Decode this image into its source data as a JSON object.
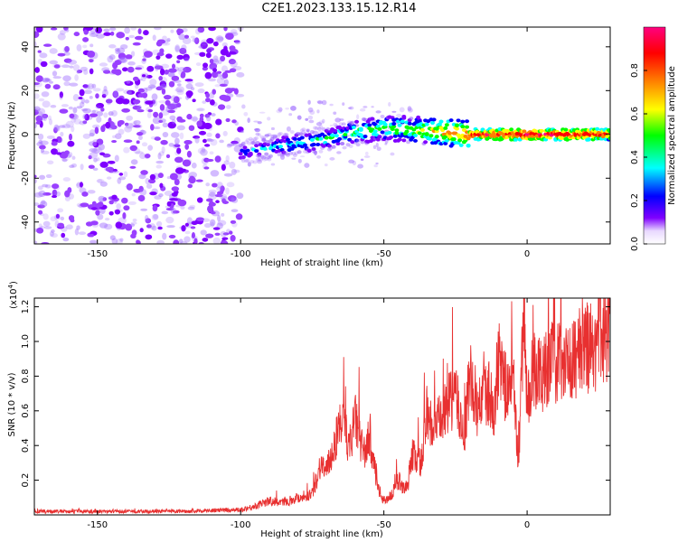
{
  "title": "C2E1.2023.133.15.12.R14",
  "chart_data": [
    {
      "type": "heatmap",
      "xlabel": "Height of straight line (km)",
      "ylabel": "Frequency (Hz)",
      "xlim": [
        -172,
        29
      ],
      "ylim": [
        -50,
        49
      ],
      "x_ticks": [
        -150,
        -100,
        -50,
        0
      ],
      "y_ticks": [
        -40,
        -20,
        0,
        20,
        40
      ],
      "colorbar": {
        "label": "Normalized spectral amplitude",
        "range": [
          0,
          1
        ],
        "ticks": [
          "0.0",
          "0.2",
          "0.4",
          "0.6",
          "0.8"
        ],
        "colormap": [
          "#ffffff",
          "#7f00ff",
          "#0000ff",
          "#00ffff",
          "#00ff00",
          "#ffff00",
          "#ff8000",
          "#ff0000",
          "#ff0080"
        ]
      },
      "ridge": {
        "x": [
          -100,
          -90,
          -80,
          -70,
          -60,
          -50,
          -40,
          -30,
          -20,
          -10,
          0,
          10,
          20,
          29
        ],
        "frequency": [
          -8,
          -6,
          -4,
          -2,
          1,
          3,
          2,
          1,
          0,
          0,
          0,
          0,
          0,
          0
        ],
        "amplitude": [
          0.3,
          0.35,
          0.4,
          0.45,
          0.5,
          0.55,
          0.6,
          0.7,
          0.85,
          0.9,
          0.95,
          0.9,
          0.9,
          0.85
        ]
      },
      "noise_region_x": [
        -172,
        -100
      ]
    },
    {
      "type": "line",
      "xlabel": "Height of straight line (km)",
      "ylabel": "SNR (10 * v/v)",
      "y_scale_label": "(x10",
      "y_scale_exp": "4",
      "xlim": [
        -172,
        29
      ],
      "ylim": [
        0,
        1.25
      ],
      "x_ticks": [
        -150,
        -100,
        -50,
        0
      ],
      "y_ticks": [
        "0.2",
        "0.4",
        "0.6",
        "0.8",
        "1.0",
        "1.2"
      ],
      "series": [
        {
          "color": "#e83030",
          "x": [
            -172,
            -150,
            -120,
            -100,
            -95,
            -90,
            -85,
            -80,
            -75,
            -72,
            -70,
            -67,
            -65,
            -62,
            -60,
            -57,
            -55,
            -52,
            -50,
            -47,
            -45,
            -42,
            -40,
            -37,
            -35,
            -33,
            -30,
            -27,
            -25,
            -22,
            -20,
            -17,
            -15,
            -12,
            -10,
            -7,
            -5,
            -3,
            -1,
            0,
            2,
            5,
            8,
            10,
            13,
            15,
            18,
            20,
            23,
            25,
            29
          ],
          "y": [
            0.02,
            0.02,
            0.02,
            0.03,
            0.05,
            0.08,
            0.07,
            0.1,
            0.12,
            0.3,
            0.25,
            0.42,
            0.55,
            0.4,
            0.55,
            0.35,
            0.45,
            0.15,
            0.08,
            0.12,
            0.2,
            0.15,
            0.35,
            0.3,
            0.6,
            0.5,
            0.55,
            0.65,
            0.7,
            0.45,
            0.8,
            0.6,
            0.75,
            0.55,
            0.9,
            0.7,
            0.8,
            0.3,
            1.25,
            0.6,
            0.85,
            0.8,
            0.9,
            0.85,
            0.95,
            0.85,
            0.95,
            1.0,
            0.9,
            1.05,
            1.05
          ]
        }
      ]
    }
  ]
}
